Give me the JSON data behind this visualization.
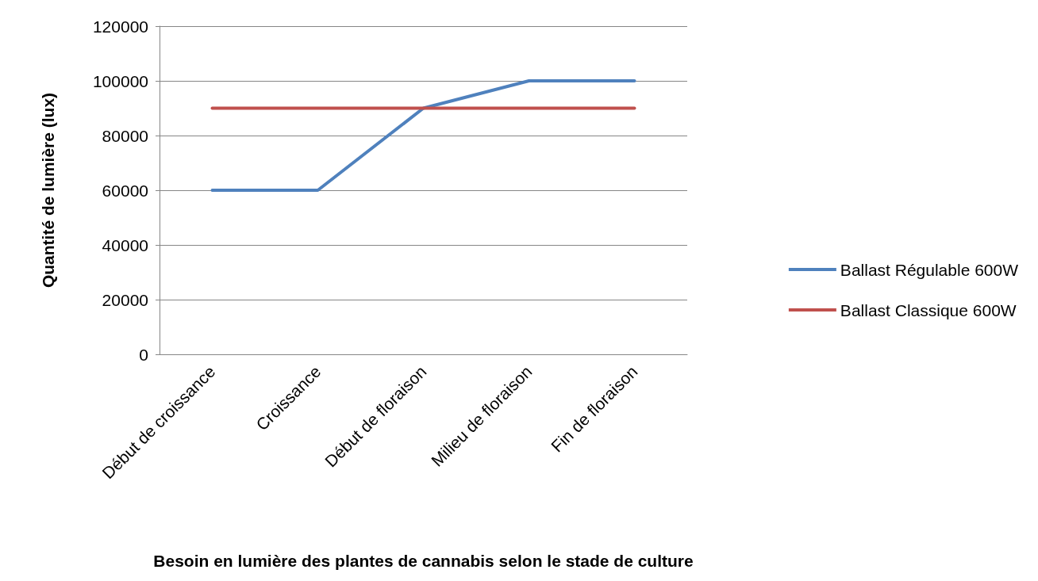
{
  "chart_data": {
    "type": "line",
    "xlabel": "Besoin en lumière des plantes de cannabis selon le stade de culture",
    "ylabel": "Quantité de lumière (lux)",
    "categories": [
      "Début de croissance",
      "Croissance",
      "Début de floraison",
      "Milieu de floraison",
      "Fin de floraison"
    ],
    "series": [
      {
        "name": "Ballast Régulable 600W",
        "color": "#4f81bd",
        "values": [
          60000,
          60000,
          90000,
          100000,
          100000
        ]
      },
      {
        "name": "Ballast Classique 600W",
        "color": "#c0504d",
        "values": [
          90000,
          90000,
          90000,
          90000,
          90000
        ]
      }
    ],
    "ylim": [
      0,
      120000
    ],
    "yticks": [
      0,
      20000,
      40000,
      60000,
      80000,
      100000,
      120000
    ],
    "grid": "y",
    "legend": "right",
    "marker": "none",
    "line_style": "solid"
  }
}
